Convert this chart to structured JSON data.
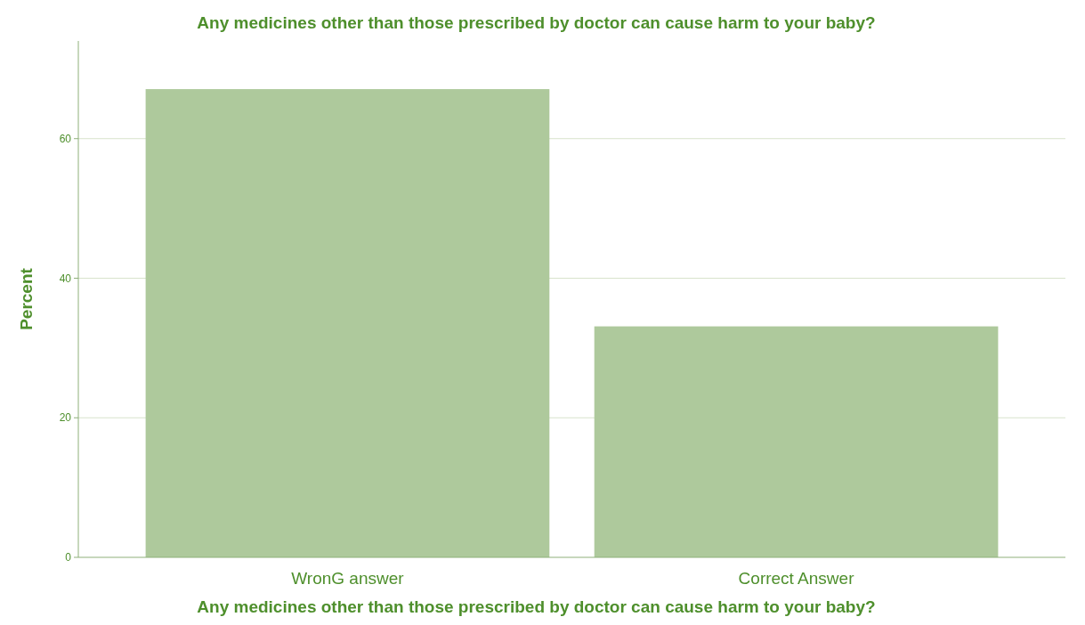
{
  "chart_data": {
    "type": "bar",
    "title": "Any medicines other than those prescribed by doctor can cause harm to your baby?",
    "xlabel": "Any medicines other than those prescribed by doctor can cause harm to your baby?",
    "ylabel": "Percent",
    "categories": [
      "WronG answer",
      "Correct Answer"
    ],
    "values": [
      67.1,
      33.1
    ],
    "color": "#aec99c",
    "ylim": [
      0,
      74
    ],
    "yticks": [
      0,
      20,
      40,
      60
    ],
    "grid": "y"
  }
}
